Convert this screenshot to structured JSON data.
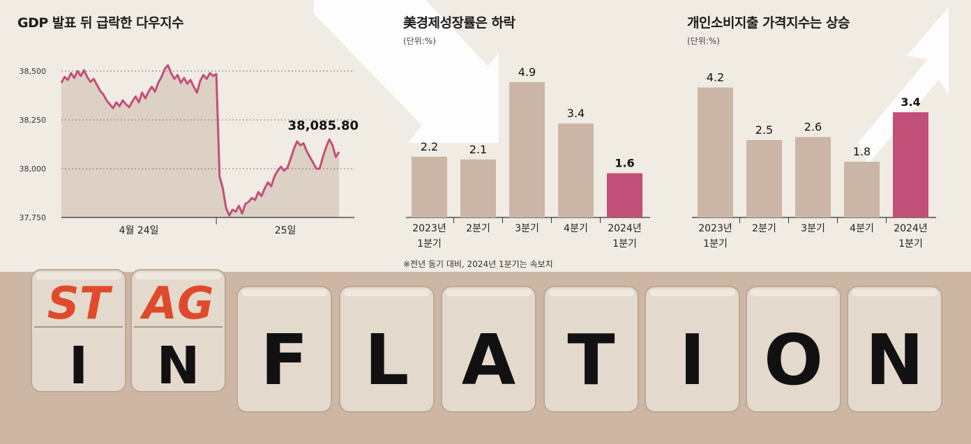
{
  "colors": {
    "background": "#f0ebe3",
    "bar": "#cbb5a6",
    "highlight": "#c24f78",
    "line": "#c24f78",
    "area": "#ddd0c4",
    "dice_wood": "#e3d9cc",
    "dice_letter_top": "#e04a2c",
    "dice_letter_bottom": "#111111"
  },
  "charts": {
    "dow": {
      "title": "GDP 발표 뒤 급락한 다우지수",
      "last_label": "38,085.80"
    },
    "gdp": {
      "title": "美경제성장률은 하락",
      "unit": "(단위:%)",
      "footnote": "※전년 동기 대비, 2024년 1분기는 속보치"
    },
    "pce": {
      "title": "개인소비지출 가격지수는 상승",
      "unit": "(단위:%)"
    }
  },
  "chart_data": [
    {
      "type": "line",
      "title": "GDP 발표 뒤 급락한 다우지수",
      "ylim": [
        37750,
        38550
      ],
      "yticks": [
        37750,
        38000,
        38250,
        38500
      ],
      "ytick_labels": [
        "37,750",
        "38,000",
        "38,250",
        "38,500"
      ],
      "xticks": [
        "4월 24일",
        "25일"
      ],
      "last_value_label": "38,085.80",
      "x": [
        0,
        1,
        2,
        3,
        4,
        5,
        6,
        7,
        8,
        9,
        10,
        11,
        12,
        13,
        14,
        15,
        16,
        17,
        18,
        19,
        20,
        21,
        22,
        23,
        24,
        25,
        26,
        27,
        28,
        29,
        30,
        31,
        32,
        33,
        34,
        35,
        36,
        37,
        38,
        39,
        40,
        41,
        42,
        43,
        44,
        45,
        46,
        47,
        48,
        49,
        50,
        51,
        52,
        53,
        54,
        55,
        56,
        57,
        58,
        59,
        60,
        61,
        62,
        63,
        64,
        65,
        66,
        67,
        68,
        69,
        70,
        71,
        72,
        73,
        74,
        75,
        76,
        77,
        78,
        79,
        80,
        81,
        82,
        83,
        84,
        85,
        86
      ],
      "values": [
        38440,
        38470,
        38455,
        38490,
        38465,
        38500,
        38475,
        38505,
        38470,
        38445,
        38460,
        38430,
        38400,
        38380,
        38350,
        38330,
        38310,
        38340,
        38320,
        38350,
        38330,
        38315,
        38345,
        38370,
        38340,
        38390,
        38360,
        38395,
        38420,
        38395,
        38440,
        38470,
        38510,
        38530,
        38490,
        38460,
        38480,
        38440,
        38465,
        38435,
        38455,
        38420,
        38390,
        38450,
        38480,
        38460,
        38490,
        38475,
        38485,
        37960,
        37900,
        37800,
        37760,
        37790,
        37780,
        37810,
        37770,
        37820,
        37830,
        37850,
        37840,
        37880,
        37860,
        37900,
        37930,
        37910,
        37960,
        37990,
        38010,
        37990,
        38005,
        38050,
        38100,
        38140,
        38120,
        38130,
        38090,
        38060,
        38030,
        38000,
        38000,
        38060,
        38110,
        38150,
        38120,
        38060,
        38086
      ],
      "session_break_index": 48
    },
    {
      "type": "bar",
      "title": "美경제성장률은 하락",
      "unit": "(단위:%)",
      "categories": [
        "2023년 1분기",
        "2분기",
        "3분기",
        "4분기",
        "2024년 1분기"
      ],
      "values": [
        2.2,
        2.1,
        4.9,
        3.4,
        1.6
      ],
      "value_labels": [
        "2.2",
        "2.1",
        "4.9",
        "3.4",
        "1.6"
      ],
      "highlight_index": 4,
      "ylim": [
        0,
        5.6
      ]
    },
    {
      "type": "bar",
      "title": "개인소비지출 가격지수는 상승",
      "unit": "(단위:%)",
      "categories": [
        "2023년 1분기",
        "2분기",
        "3분기",
        "4분기",
        "2024년 1분기"
      ],
      "values": [
        4.2,
        2.5,
        2.6,
        1.8,
        3.4
      ],
      "value_labels": [
        "4.2",
        "2.5",
        "2.6",
        "1.8",
        "3.4"
      ],
      "highlight_index": 4,
      "ylim": [
        0,
        5.0
      ]
    }
  ],
  "dice": {
    "top_letters": [
      "ST",
      "AG"
    ],
    "bottom_letters": [
      "I",
      "N",
      "F",
      "L",
      "A",
      "T",
      "I",
      "O",
      "N"
    ]
  }
}
